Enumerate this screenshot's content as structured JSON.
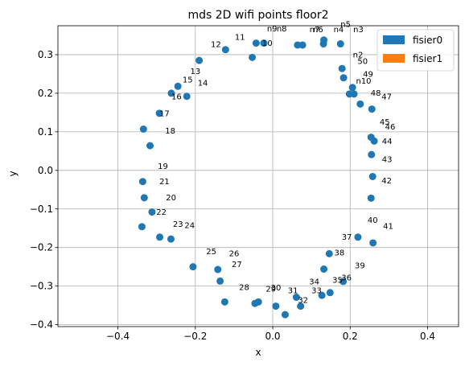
{
  "chart_data": {
    "type": "scatter",
    "title": "mds 2D wifi points floor2",
    "xlabel": "x",
    "ylabel": "y",
    "xlim": [
      -0.555,
      0.48
    ],
    "ylim": [
      -0.405,
      0.375
    ],
    "xticks": [
      -0.4,
      -0.2,
      0.0,
      0.2,
      0.4
    ],
    "xtick_labels": [
      "−0.4",
      "−0.2",
      "0.0",
      "0.2",
      "0.4"
    ],
    "yticks": [
      -0.4,
      -0.3,
      -0.2,
      -0.1,
      0.0,
      0.1,
      0.2,
      0.3
    ],
    "ytick_labels": [
      "−0.4",
      "−0.3",
      "−0.2",
      "−0.1",
      "0.0",
      "0.1",
      "0.2",
      "0.3"
    ],
    "grid": true,
    "legend_position": "top-right",
    "series": [
      {
        "name": "fisier0",
        "color": "#1f77b4"
      },
      {
        "name": "fisier1",
        "color": "#ff7f0e"
      }
    ],
    "points": [
      {
        "x": -0.023,
        "y": 0.33
      },
      {
        "x": -0.053,
        "y": 0.293
      },
      {
        "x": -0.043,
        "y": 0.33
      },
      {
        "x": -0.122,
        "y": 0.313
      },
      {
        "x": -0.19,
        "y": 0.285
      },
      {
        "x": -0.245,
        "y": 0.218
      },
      {
        "x": -0.222,
        "y": 0.192
      },
      {
        "x": -0.262,
        "y": 0.2
      },
      {
        "x": -0.293,
        "y": 0.148
      },
      {
        "x": -0.334,
        "y": 0.107
      },
      {
        "x": -0.317,
        "y": 0.064
      },
      {
        "x": -0.336,
        "y": -0.029
      },
      {
        "x": -0.332,
        "y": -0.071
      },
      {
        "x": -0.312,
        "y": -0.108
      },
      {
        "x": -0.338,
        "y": -0.146
      },
      {
        "x": -0.292,
        "y": -0.173
      },
      {
        "x": -0.263,
        "y": -0.178
      },
      {
        "x": -0.206,
        "y": -0.25
      },
      {
        "x": -0.142,
        "y": -0.257
      },
      {
        "x": -0.136,
        "y": -0.287
      },
      {
        "x": -0.124,
        "y": -0.341
      },
      {
        "x": -0.046,
        "y": -0.345
      },
      {
        "x": -0.037,
        "y": -0.341
      },
      {
        "x": 0.008,
        "y": -0.352
      },
      {
        "x": 0.032,
        "y": -0.374
      },
      {
        "x": 0.061,
        "y": -0.329
      },
      {
        "x": 0.072,
        "y": -0.352
      },
      {
        "x": 0.127,
        "y": -0.324
      },
      {
        "x": 0.148,
        "y": -0.317
      },
      {
        "x": 0.132,
        "y": -0.256
      },
      {
        "x": 0.146,
        "y": -0.216
      },
      {
        "x": 0.182,
        "y": -0.288
      },
      {
        "x": 0.22,
        "y": -0.173
      },
      {
        "x": 0.259,
        "y": -0.188
      },
      {
        "x": 0.254,
        "y": -0.072
      },
      {
        "x": 0.258,
        "y": -0.016
      },
      {
        "x": 0.255,
        "y": 0.041
      },
      {
        "x": 0.254,
        "y": 0.086
      },
      {
        "x": 0.262,
        "y": 0.076
      },
      {
        "x": 0.256,
        "y": 0.159
      },
      {
        "x": 0.226,
        "y": 0.172
      },
      {
        "x": 0.198,
        "y": 0.198
      },
      {
        "x": 0.21,
        "y": 0.198
      },
      {
        "x": 0.206,
        "y": 0.215
      },
      {
        "x": 0.183,
        "y": 0.24
      },
      {
        "x": 0.179,
        "y": 0.264
      },
      {
        "x": 0.175,
        "y": 0.328
      },
      {
        "x": 0.132,
        "y": 0.338
      },
      {
        "x": 0.131,
        "y": 0.328
      },
      {
        "x": 0.077,
        "y": 0.325
      },
      {
        "x": 0.064,
        "y": 0.325
      }
    ],
    "annotations": [
      {
        "text": "n9",
        "x": -0.015,
        "y": 0.36
      },
      {
        "text": "n8",
        "x": 0.01,
        "y": 0.36
      },
      {
        "text": "11",
        "x": -0.098,
        "y": 0.338
      },
      {
        "text": "10",
        "x": -0.027,
        "y": 0.323
      },
      {
        "text": "12",
        "x": -0.16,
        "y": 0.32
      },
      {
        "text": "13",
        "x": -0.213,
        "y": 0.25
      },
      {
        "text": "15",
        "x": -0.233,
        "y": 0.228
      },
      {
        "text": "14",
        "x": -0.194,
        "y": 0.22
      },
      {
        "text": "16",
        "x": -0.262,
        "y": 0.184
      },
      {
        "text": "17",
        "x": -0.293,
        "y": 0.14
      },
      {
        "text": "18",
        "x": -0.278,
        "y": 0.096
      },
      {
        "text": "19",
        "x": -0.297,
        "y": 0.004
      },
      {
        "text": "21",
        "x": -0.293,
        "y": -0.036
      },
      {
        "text": "20",
        "x": -0.276,
        "y": -0.078
      },
      {
        "text": "22",
        "x": -0.301,
        "y": -0.115
      },
      {
        "text": "23",
        "x": -0.258,
        "y": -0.146
      },
      {
        "text": "24",
        "x": -0.228,
        "y": -0.149
      },
      {
        "text": "25",
        "x": -0.172,
        "y": -0.217
      },
      {
        "text": "26",
        "x": -0.113,
        "y": -0.222
      },
      {
        "text": "27",
        "x": -0.106,
        "y": -0.251
      },
      {
        "text": "28",
        "x": -0.087,
        "y": -0.31
      },
      {
        "text": "29",
        "x": -0.018,
        "y": -0.314
      },
      {
        "text": "30",
        "x": -0.005,
        "y": -0.311
      },
      {
        "text": "31",
        "x": 0.039,
        "y": -0.318
      },
      {
        "text": "32",
        "x": 0.065,
        "y": -0.343
      },
      {
        "text": "33",
        "x": 0.1,
        "y": -0.318
      },
      {
        "text": "34",
        "x": 0.094,
        "y": -0.295
      },
      {
        "text": "35",
        "x": 0.154,
        "y": -0.291
      },
      {
        "text": "36",
        "x": 0.177,
        "y": -0.285
      },
      {
        "text": "37",
        "x": 0.178,
        "y": -0.18
      },
      {
        "text": "38",
        "x": 0.159,
        "y": -0.22
      },
      {
        "text": "39",
        "x": 0.212,
        "y": -0.254
      },
      {
        "text": "40",
        "x": 0.245,
        "y": -0.136
      },
      {
        "text": "41",
        "x": 0.285,
        "y": -0.152
      },
      {
        "text": "42",
        "x": 0.281,
        "y": -0.034
      },
      {
        "text": "43",
        "x": 0.282,
        "y": 0.021
      },
      {
        "text": "44",
        "x": 0.282,
        "y": 0.068
      },
      {
        "text": "45",
        "x": 0.276,
        "y": 0.118
      },
      {
        "text": "46",
        "x": 0.29,
        "y": 0.106
      },
      {
        "text": "47",
        "x": 0.281,
        "y": 0.184
      },
      {
        "text": "48",
        "x": 0.253,
        "y": 0.194
      },
      {
        "text": "49",
        "x": 0.233,
        "y": 0.243
      },
      {
        "text": "n10",
        "x": 0.215,
        "y": 0.225
      },
      {
        "text": "50",
        "x": 0.219,
        "y": 0.276
      },
      {
        "text": "n2",
        "x": 0.207,
        "y": 0.293
      },
      {
        "text": "n7",
        "x": 0.095,
        "y": 0.358
      },
      {
        "text": "n6",
        "x": 0.104,
        "y": 0.358
      },
      {
        "text": "n4",
        "x": 0.157,
        "y": 0.358
      },
      {
        "text": "n3",
        "x": 0.208,
        "y": 0.358
      },
      {
        "text": "n5",
        "x": 0.175,
        "y": 0.372
      }
    ]
  }
}
